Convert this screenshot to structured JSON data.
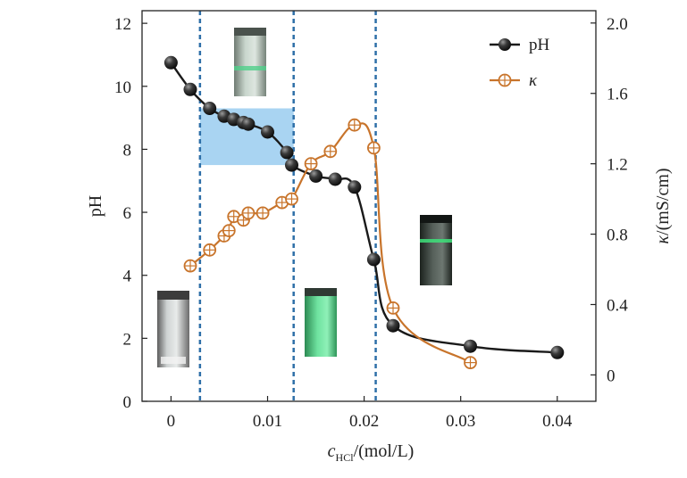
{
  "chart_data": {
    "type": "line",
    "title": "",
    "xlabel": {
      "main": "c",
      "sub": "HCl",
      "rest": "/(mol/L)"
    },
    "ylabel": "pH",
    "y2label": {
      "kappa": "κ",
      "rest": "/(mS/cm)"
    },
    "xlim": [
      -0.003,
      0.044
    ],
    "ylim": [
      0,
      12.4
    ],
    "y2lim": [
      -0.15,
      2.07
    ],
    "x_ticks": [
      {
        "v": 0,
        "label": "0"
      },
      {
        "v": 0.01,
        "label": "0.01"
      },
      {
        "v": 0.02,
        "label": "0.02"
      },
      {
        "v": 0.03,
        "label": "0.03"
      },
      {
        "v": 0.04,
        "label": "0.04"
      }
    ],
    "y_ticks": [
      {
        "v": 0,
        "label": "0"
      },
      {
        "v": 2,
        "label": "2"
      },
      {
        "v": 4,
        "label": "4"
      },
      {
        "v": 6,
        "label": "6"
      },
      {
        "v": 8,
        "label": "8"
      },
      {
        "v": 10,
        "label": "10"
      },
      {
        "v": 12,
        "label": "12"
      }
    ],
    "y2_ticks": [
      {
        "v": 0,
        "label": "0"
      },
      {
        "v": 0.4,
        "label": "0.4"
      },
      {
        "v": 0.8,
        "label": "0.8"
      },
      {
        "v": 1.2,
        "label": "1.2"
      },
      {
        "v": 1.6,
        "label": "1.6"
      },
      {
        "v": 2.0,
        "label": "2.0"
      }
    ],
    "grid": false,
    "legend_position": "top-right",
    "series": [
      {
        "name": "pH",
        "axis": "left",
        "color": "#1a1a1a",
        "marker": "filled-sphere",
        "x": [
          0,
          0.002,
          0.004,
          0.0055,
          0.0065,
          0.0075,
          0.008,
          0.01,
          0.012,
          0.0125,
          0.015,
          0.017,
          0.019,
          0.021,
          0.023,
          0.031,
          0.04
        ],
        "y": [
          10.75,
          9.9,
          9.3,
          9.05,
          8.95,
          8.85,
          8.8,
          8.55,
          7.9,
          7.5,
          7.15,
          7.05,
          6.8,
          4.5,
          2.4,
          1.75,
          1.55
        ]
      },
      {
        "name": "κ",
        "axis": "right",
        "color": "#c8742b",
        "marker": "open-circle-cross",
        "x": [
          0.002,
          0.004,
          0.0055,
          0.006,
          0.0065,
          0.0075,
          0.008,
          0.0095,
          0.0115,
          0.0125,
          0.0145,
          0.0165,
          0.019,
          0.021,
          0.023,
          0.031
        ],
        "y": [
          0.62,
          0.71,
          0.79,
          0.82,
          0.9,
          0.88,
          0.92,
          0.92,
          0.98,
          1.0,
          1.2,
          1.27,
          1.42,
          1.29,
          0.38,
          0.07
        ]
      }
    ],
    "vlines_x": [
      0.003,
      0.0127,
      0.0212
    ],
    "vline_color": "#2e6fa8",
    "shaded_region": {
      "x": [
        0.003,
        0.0127
      ],
      "y": [
        7.5,
        9.3
      ],
      "color": "#a9d4f2"
    }
  }
}
